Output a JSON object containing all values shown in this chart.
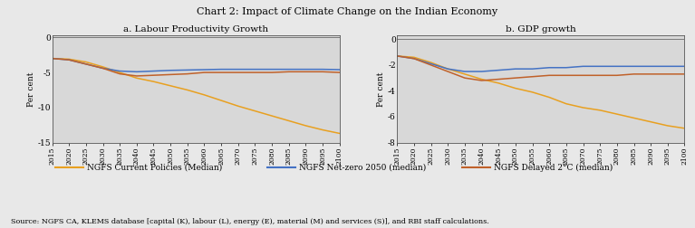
{
  "title": "Chart 2: Impact of Climate Change on the Indian Economy",
  "subtitle_a": "a. Labour Productivity Growth",
  "subtitle_b": "b. GDP growth",
  "ylabel": "Per cent",
  "source_text": "Source: NGFS CA, KLEMS database [capital (K), labour (L), energy (E), material (M) and services (S)], and RBI staff calculations.",
  "legend": [
    {
      "label": "NGFS Current Policies (Median)",
      "color": "#E8A020"
    },
    {
      "label": "NGFS Net-zero 2050 (median)",
      "color": "#4472C4"
    },
    {
      "label": "NGFS Delayed 2°C (median)",
      "color": "#C0612A"
    }
  ],
  "years": [
    2015,
    2020,
    2025,
    2030,
    2035,
    2040,
    2045,
    2050,
    2055,
    2060,
    2065,
    2070,
    2075,
    2080,
    2085,
    2090,
    2095,
    2100
  ],
  "panel_a": {
    "current_policies": [
      -3.0,
      -3.1,
      -3.5,
      -4.2,
      -5.0,
      -5.8,
      -6.3,
      -6.9,
      -7.5,
      -8.2,
      -9.0,
      -9.8,
      -10.5,
      -11.2,
      -11.9,
      -12.6,
      -13.2,
      -13.7
    ],
    "net_zero_2050": [
      -3.0,
      -3.2,
      -3.8,
      -4.4,
      -4.8,
      -4.9,
      -4.8,
      -4.7,
      -4.65,
      -4.6,
      -4.55,
      -4.55,
      -4.55,
      -4.55,
      -4.55,
      -4.55,
      -4.55,
      -4.6
    ],
    "delayed_2c": [
      -3.0,
      -3.2,
      -3.8,
      -4.4,
      -5.2,
      -5.5,
      -5.4,
      -5.3,
      -5.2,
      -5.0,
      -5.0,
      -5.0,
      -5.0,
      -5.0,
      -4.9,
      -4.9,
      -4.9,
      -5.0
    ]
  },
  "panel_b": {
    "current_policies": [
      -1.3,
      -1.4,
      -1.8,
      -2.3,
      -2.7,
      -3.1,
      -3.4,
      -3.8,
      -4.1,
      -4.5,
      -5.0,
      -5.3,
      -5.5,
      -5.8,
      -6.1,
      -6.4,
      -6.7,
      -6.9
    ],
    "net_zero_2050": [
      -1.3,
      -1.5,
      -1.9,
      -2.3,
      -2.5,
      -2.5,
      -2.4,
      -2.3,
      -2.3,
      -2.2,
      -2.2,
      -2.1,
      -2.1,
      -2.1,
      -2.1,
      -2.1,
      -2.1,
      -2.1
    ],
    "delayed_2c": [
      -1.3,
      -1.5,
      -2.0,
      -2.5,
      -3.0,
      -3.2,
      -3.1,
      -3.0,
      -2.9,
      -2.8,
      -2.8,
      -2.8,
      -2.8,
      -2.8,
      -2.7,
      -2.7,
      -2.7,
      -2.7
    ]
  },
  "panel_a_ylim": [
    -15,
    0.3
  ],
  "panel_b_ylim": [
    -8,
    0.3
  ],
  "panel_a_yticks": [
    0,
    -5,
    -10,
    -15
  ],
  "panel_b_yticks": [
    0,
    -2,
    -4,
    -6,
    -8
  ],
  "bg_color": "#E8E8E8",
  "plot_bg_color": "#D8D8D8"
}
